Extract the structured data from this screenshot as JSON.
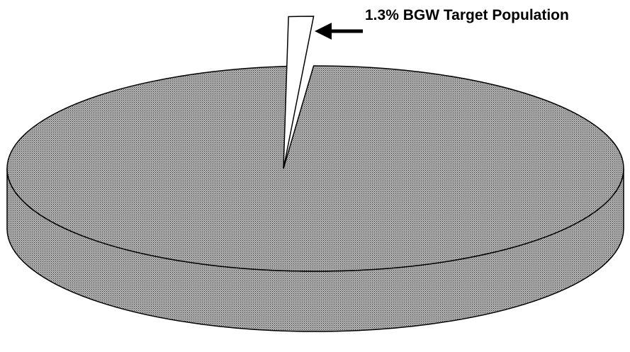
{
  "chart_data": {
    "type": "pie",
    "categories": [
      "BGW Target Population",
      null
    ],
    "values": [
      1.3,
      98.7
    ],
    "value_labels": [
      "1.3%",
      null
    ],
    "colors": [
      "#ffffff",
      "#9a9a9a"
    ]
  }
}
